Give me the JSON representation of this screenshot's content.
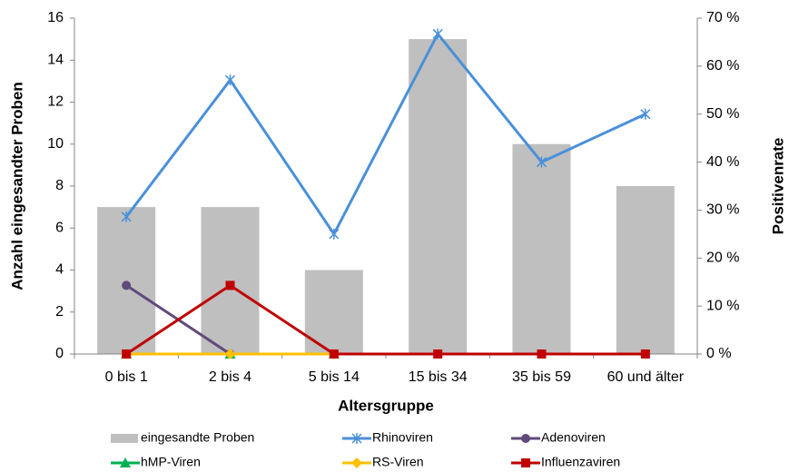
{
  "chart_data": {
    "type": "combo",
    "x_label": "Altersgruppe",
    "y_label": "Anzahl eingesandter Proben",
    "y2_label": "Positivenrate",
    "categories": [
      "0 bis 1",
      "2 bis 4",
      "5 bis 14",
      "15 bis 34",
      "35 bis 59",
      "60 und älter"
    ],
    "ylim": [
      0,
      16
    ],
    "yticks": [
      0,
      2,
      4,
      6,
      8,
      10,
      12,
      14,
      16
    ],
    "y2lim": [
      0,
      70
    ],
    "y2ticks": [
      {
        "value": 0,
        "label": "0 %"
      },
      {
        "value": 10,
        "label": "10 %"
      },
      {
        "value": 20,
        "label": "20 %"
      },
      {
        "value": 30,
        "label": "30 %"
      },
      {
        "value": 40,
        "label": "40 %"
      },
      {
        "value": 50,
        "label": "50 %"
      },
      {
        "value": 60,
        "label": "60 %"
      },
      {
        "value": 70,
        "label": "70 %"
      }
    ],
    "series": [
      {
        "name": "eingesandte Proben",
        "type": "bar",
        "color": "#bfbfbf",
        "values": [
          7,
          7,
          4,
          15,
          10,
          8
        ]
      },
      {
        "name": "Rhinoviren",
        "type": "line",
        "axis": "y2",
        "color": "#4a90d9",
        "marker": "star",
        "values": [
          28.6,
          57.1,
          25,
          66.7,
          40,
          50
        ]
      },
      {
        "name": "Adenoviren",
        "type": "line",
        "axis": "y2",
        "color": "#604a7b",
        "marker": "circle",
        "values": [
          14.3,
          0,
          null,
          null,
          null,
          null
        ]
      },
      {
        "name": "hMP-Viren",
        "type": "line",
        "axis": "y2",
        "color": "#00b050",
        "marker": "triangle",
        "values": [
          0,
          0,
          0,
          null,
          null,
          null
        ]
      },
      {
        "name": "RS-Viren",
        "type": "line",
        "axis": "y2",
        "color": "#ffc000",
        "marker": "diamond",
        "values": [
          0,
          0,
          0,
          null,
          null,
          null
        ]
      },
      {
        "name": "Influenzaviren",
        "type": "line",
        "axis": "y2",
        "color": "#c00000",
        "marker": "square",
        "values": [
          0,
          14.3,
          0,
          0,
          0,
          0
        ]
      }
    ]
  }
}
